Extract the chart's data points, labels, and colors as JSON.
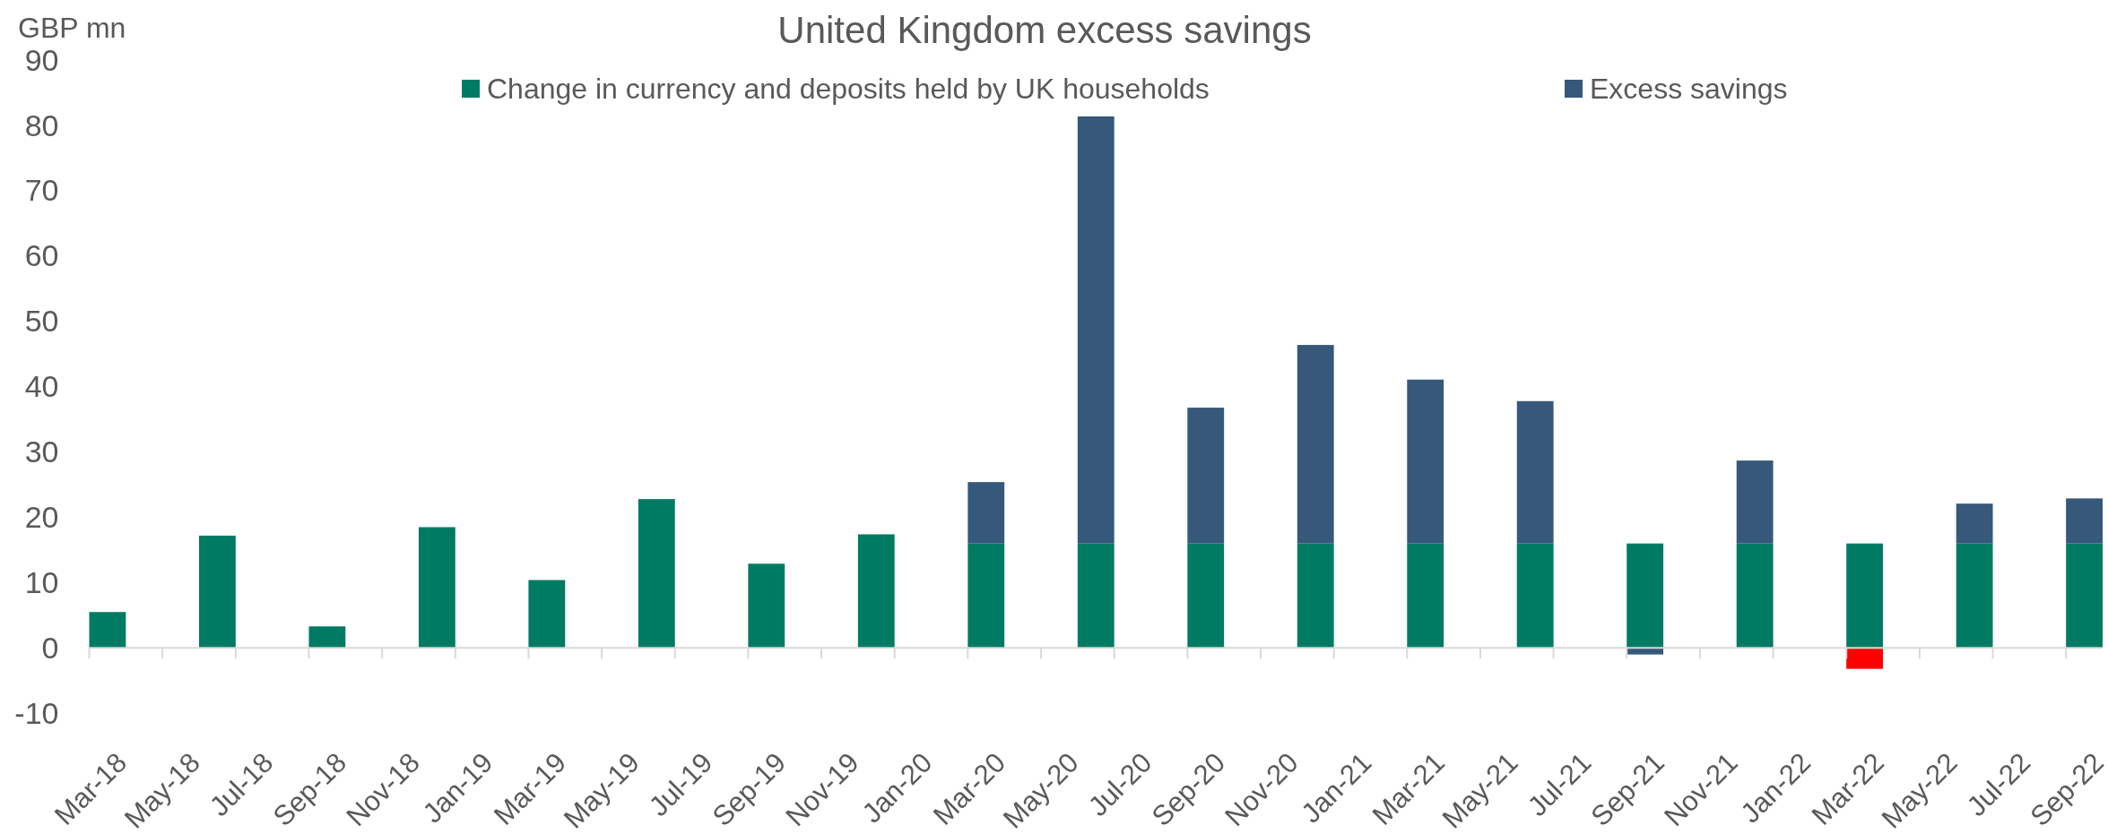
{
  "chart_data": {
    "type": "bar",
    "title": "United Kingdom excess savings",
    "ylabel": "GBP mn",
    "categories": [
      "Mar-18",
      null,
      "May-18",
      null,
      "Jul-18",
      null,
      "Sep-18",
      null,
      "Nov-18",
      null,
      "Jan-19",
      null,
      "Mar-19",
      null,
      "May-19",
      null,
      "Jul-19",
      null,
      "Sep-19",
      null,
      "Nov-19",
      null,
      "Jan-20",
      null,
      "Mar-20",
      null,
      "May-20",
      null,
      "Jul-20",
      null,
      "Sep-20",
      null,
      "Nov-20",
      null,
      "Jan-21",
      null,
      "Mar-21",
      null,
      "May-21",
      null,
      "Jul-21",
      null,
      "Sep-21",
      null,
      "Nov-21",
      null,
      "Jan-22",
      null,
      "Mar-22",
      null,
      "May-22",
      null,
      "Jul-22",
      null,
      "Sep-22"
    ],
    "series": [
      {
        "name": "Change in currency and deposits held by UK households",
        "color": "#007b63",
        "values": [
          5.5,
          null,
          null,
          17.2,
          null,
          null,
          3.3,
          null,
          null,
          18.5,
          null,
          null,
          10.4,
          null,
          null,
          22.8,
          null,
          null,
          12.9,
          null,
          null,
          17.4,
          null,
          null,
          16,
          null,
          null,
          16,
          null,
          null,
          16,
          null,
          null,
          16,
          null,
          null,
          16,
          null,
          null,
          16,
          null,
          null,
          16,
          null,
          null,
          16,
          null,
          null,
          16,
          null,
          null,
          16,
          null,
          null,
          16
        ]
      },
      {
        "name": "Excess savings",
        "color": "#36587a",
        "values": [
          null,
          null,
          null,
          null,
          null,
          null,
          null,
          null,
          null,
          null,
          null,
          null,
          null,
          null,
          null,
          null,
          null,
          null,
          null,
          null,
          null,
          null,
          null,
          null,
          9.4,
          null,
          null,
          65.4,
          null,
          null,
          20.8,
          null,
          null,
          30.4,
          null,
          null,
          25.1,
          null,
          null,
          21.8,
          null,
          null,
          -1.0,
          null,
          null,
          12.7,
          null,
          null,
          -3.2,
          null,
          null,
          6.1,
          null,
          null,
          6.9
        ],
        "colors": [
          null,
          null,
          null,
          null,
          null,
          null,
          null,
          null,
          null,
          null,
          null,
          null,
          null,
          null,
          null,
          null,
          null,
          null,
          null,
          null,
          null,
          null,
          null,
          null,
          "#36587a",
          null,
          null,
          "#36587a",
          null,
          null,
          "#36587a",
          null,
          null,
          "#36587a",
          null,
          null,
          "#36587a",
          null,
          null,
          "#36587a",
          null,
          null,
          "#36587a",
          null,
          null,
          "#36587a",
          null,
          null,
          "#ff0000",
          null,
          null,
          "#36587a",
          null,
          null,
          "#36587a"
        ]
      }
    ],
    "stacked": true,
    "ylim": [
      -10,
      90
    ],
    "yticks": [
      -10,
      0,
      10,
      20,
      30,
      40,
      50,
      60,
      70,
      80,
      90
    ],
    "legend": "top"
  }
}
